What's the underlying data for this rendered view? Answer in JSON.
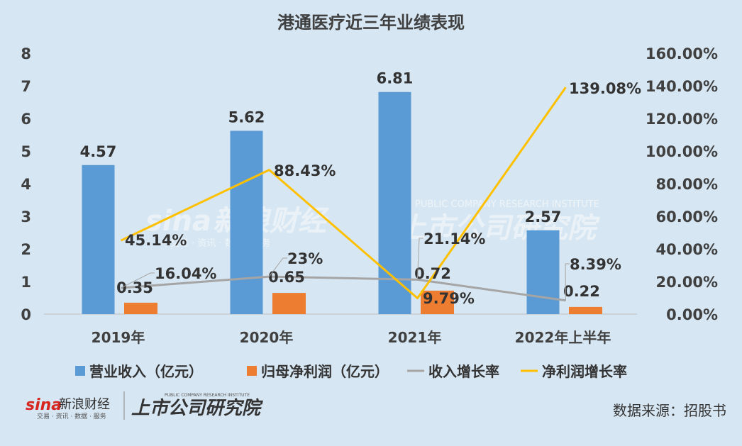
{
  "chart_data": {
    "type": "bar",
    "title": "港通医疗近三年业绩表现",
    "categories": [
      "2019年",
      "2020年",
      "2021年",
      "2022年上半年"
    ],
    "y_left": {
      "min": 0,
      "max": 8,
      "ticks": [
        "0",
        "1",
        "2",
        "3",
        "4",
        "5",
        "6",
        "7",
        "8"
      ]
    },
    "y_right": {
      "min": 0,
      "max": 160,
      "ticks": [
        "0.00%",
        "20.00%",
        "40.00%",
        "60.00%",
        "80.00%",
        "100.00%",
        "120.00%",
        "140.00%",
        "160.00%"
      ]
    },
    "series": [
      {
        "name": "营业收入（亿元）",
        "type": "bar",
        "axis": "left",
        "color": "#5b9bd5",
        "values": [
          4.57,
          5.62,
          6.81,
          2.57
        ],
        "labels": [
          "4.57",
          "5.62",
          "6.81",
          "2.57"
        ]
      },
      {
        "name": "归母净利润（亿元）",
        "type": "bar",
        "axis": "left",
        "color": "#ed7d31",
        "values": [
          0.35,
          0.65,
          0.72,
          0.22
        ],
        "labels": [
          "0.35",
          "0.65",
          "0.72",
          "0.22"
        ]
      },
      {
        "name": "收入增长率",
        "type": "line",
        "axis": "right",
        "color": "#a5a5a5",
        "values": [
          16.04,
          23,
          21.14,
          8.39
        ],
        "labels": [
          "16.04%",
          "23%",
          "21.14%",
          "8.39%"
        ]
      },
      {
        "name": "净利润增长率",
        "type": "line",
        "axis": "right",
        "color": "#ffc000",
        "values": [
          45.14,
          88.43,
          9.79,
          139.08
        ],
        "labels": [
          "45.14%",
          "88.43%",
          "9.79%",
          "139.08%"
        ]
      }
    ],
    "legend_position": "bottom",
    "grid": false
  },
  "source_note": "数据来源：招股书",
  "watermark": {
    "sina": "sina",
    "sina_cn": "新浪财经",
    "sina_sub": "交易 · 资讯 · 数据 · 服务",
    "institute": "上市公司研究院",
    "institute_en": "PUBLIC COMPANY RESEARCH INSTITUTE"
  }
}
